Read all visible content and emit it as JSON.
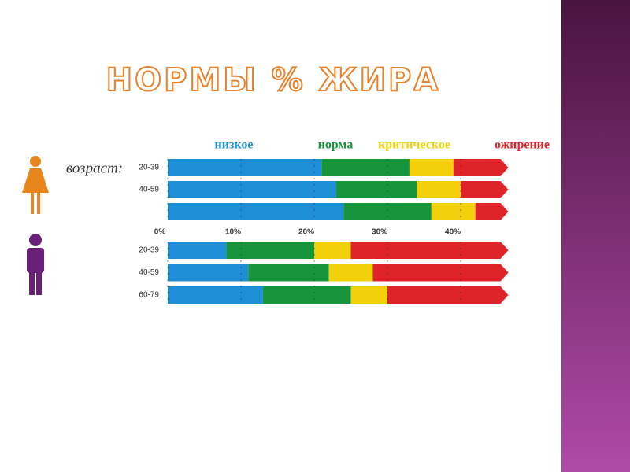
{
  "chart_data": {
    "type": "stacked-barh",
    "title": "НОРМЫ % ЖИРА",
    "ylabel": "возраст:",
    "categories": [
      "20-39",
      "40-59",
      null,
      "20-39",
      "40-59",
      "60-79"
    ],
    "series": [
      {
        "name": "низкое",
        "color": "#1e8fd6",
        "values": [
          21,
          23,
          24,
          8,
          11,
          13
        ]
      },
      {
        "name": "норма",
        "color": "#17953c",
        "values": [
          12,
          11,
          12,
          12,
          11,
          12
        ]
      },
      {
        "name": "критическое",
        "color": "#f2d10c",
        "values": [
          6,
          6,
          6,
          5,
          6,
          5
        ]
      },
      {
        "name": "ожирение",
        "color": "#de2428",
        "values": [
          7.5,
          6.5,
          4.5,
          21.5,
          18.5,
          16.5
        ]
      }
    ],
    "xlim": [
      0,
      46.5
    ],
    "xticks": [
      {
        "value": 0,
        "label": "0%"
      },
      {
        "value": 10,
        "label": "10%"
      },
      {
        "value": 20,
        "label": "20%"
      },
      {
        "value": 30,
        "label": "30%"
      },
      {
        "value": 40,
        "label": "40%"
      }
    ]
  }
}
